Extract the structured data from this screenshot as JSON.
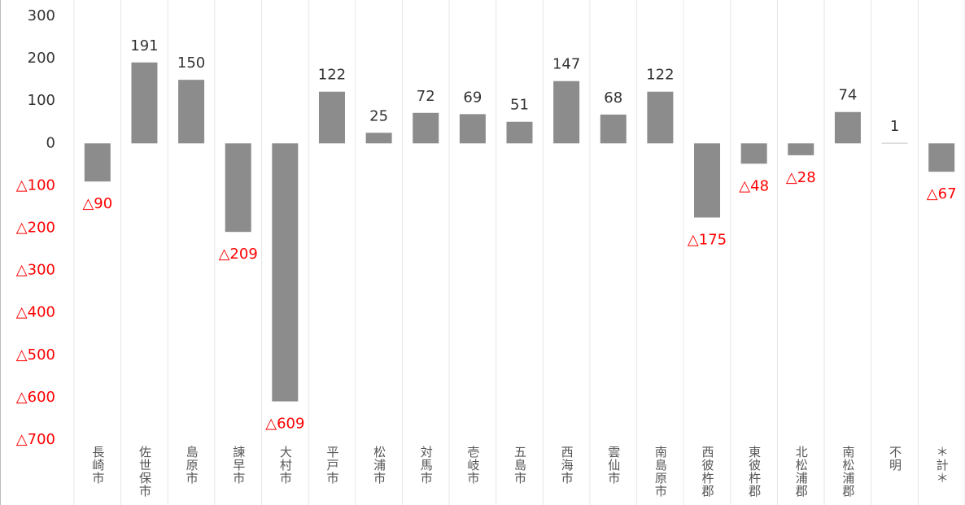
{
  "chart_data": {
    "type": "bar",
    "categories": [
      "長崎市",
      "佐世保市",
      "島原市",
      "諫早市",
      "大村市",
      "平戸市",
      "松浦市",
      "対馬市",
      "壱岐市",
      "五島市",
      "西海市",
      "雲仙市",
      "南島原市",
      "西彼杵郡",
      "東彼杵郡",
      "北松浦郡",
      "南松浦郡",
      "不明",
      "＊計＊"
    ],
    "values": [
      -90,
      191,
      150,
      -209,
      -609,
      122,
      25,
      72,
      69,
      51,
      147,
      68,
      122,
      -175,
      -48,
      -28,
      74,
      1,
      -67
    ],
    "value_labels": [
      "△90",
      "191",
      "150",
      "△209",
      "△609",
      "122",
      "25",
      "72",
      "69",
      "51",
      "147",
      "68",
      "122",
      "△175",
      "△48",
      "△28",
      "74",
      "1",
      "△67"
    ],
    "color": "#8c8c8c",
    "label_color": "#333333",
    "negative_label_color": "#ff0000",
    "ylim": [
      -700,
      300
    ],
    "yticks": [
      {
        "value": -700,
        "label": "△700"
      },
      {
        "value": -600,
        "label": "△600"
      },
      {
        "value": -500,
        "label": "△500"
      },
      {
        "value": -400,
        "label": "△400"
      },
      {
        "value": -300,
        "label": "△300"
      },
      {
        "value": -200,
        "label": "△200"
      },
      {
        "value": -100,
        "label": "△100"
      },
      0,
      100,
      200,
      300
    ]
  }
}
